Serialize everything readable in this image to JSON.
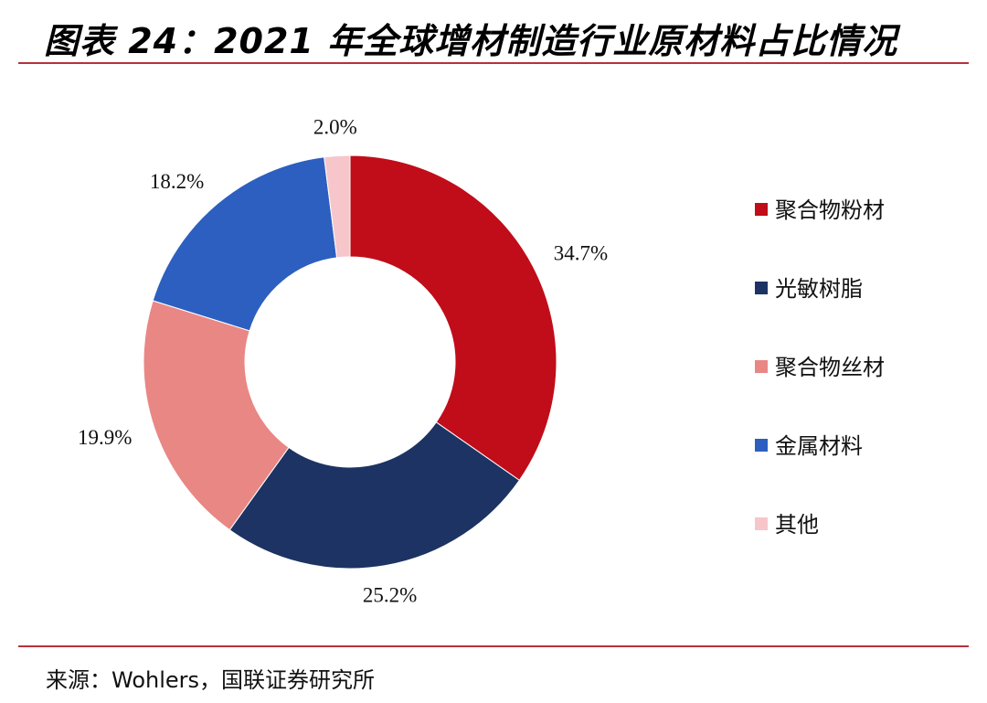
{
  "header": {
    "title": "图表 24：2021 年全球增材制造行业原材料占比情况"
  },
  "footer": {
    "source": "来源：Wohlers，国联证券研究所"
  },
  "chart_data": {
    "type": "pie",
    "style": "donut",
    "categories": [
      "聚合物粉材",
      "光敏树脂",
      "聚合物丝材",
      "金属材料",
      "其他"
    ],
    "values": [
      34.7,
      25.2,
      19.9,
      18.2,
      2.0
    ],
    "value_labels": [
      "34.7%",
      "25.2%",
      "19.9%",
      "18.2%",
      "2.0%"
    ],
    "colors": [
      "#c00d19",
      "#1c3363",
      "#e98785",
      "#2c5fbf",
      "#f6c6cb"
    ],
    "legend_position": "right"
  }
}
